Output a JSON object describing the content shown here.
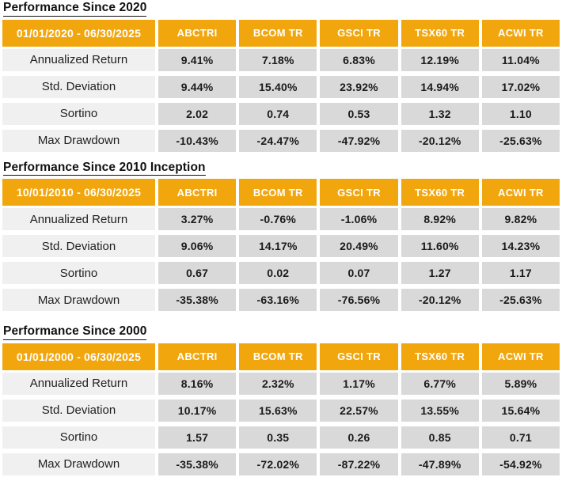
{
  "colors": {
    "header_bg": "#F2A60D",
    "header_text": "#FFFFFF",
    "label_cell_bg": "#F0F0F0",
    "value_cell_bg": "#D9D9D9",
    "text": "#1C1C1C",
    "page_bg": "#FFFFFF"
  },
  "columns": [
    "ABCTRI",
    "BCOM TR",
    "GSCI TR",
    "TSX60 TR",
    "ACWI TR"
  ],
  "tables": [
    {
      "title": "Performance Since 2020",
      "date_range": "01/01/2020 - 06/30/2025",
      "rows": [
        {
          "label": "Annualized Return",
          "values": [
            "9.41%",
            "7.18%",
            "6.83%",
            "12.19%",
            "11.04%"
          ]
        },
        {
          "label": "Std. Deviation",
          "values": [
            "9.44%",
            "15.40%",
            "23.92%",
            "14.94%",
            "17.02%"
          ]
        },
        {
          "label": "Sortino",
          "values": [
            "2.02",
            "0.74",
            "0.53",
            "1.32",
            "1.10"
          ]
        },
        {
          "label": "Max Drawdown",
          "values": [
            "-10.43%",
            "-24.47%",
            "-47.92%",
            "-20.12%",
            "-25.63%"
          ]
        }
      ]
    },
    {
      "title": "Performance Since 2010 Inception",
      "date_range": "10/01/2010 - 06/30/2025",
      "rows": [
        {
          "label": "Annualized Return",
          "values": [
            "3.27%",
            "-0.76%",
            "-1.06%",
            "8.92%",
            "9.82%"
          ]
        },
        {
          "label": "Std. Deviation",
          "values": [
            "9.06%",
            "14.17%",
            "20.49%",
            "11.60%",
            "14.23%"
          ]
        },
        {
          "label": "Sortino",
          "values": [
            "0.67",
            "0.02",
            "0.07",
            "1.27",
            "1.17"
          ]
        },
        {
          "label": "Max Drawdown",
          "values": [
            "-35.38%",
            "-63.16%",
            "-76.56%",
            "-20.12%",
            "-25.63%"
          ]
        }
      ]
    },
    {
      "title": "Performance Since 2000",
      "date_range": "01/01/2000 - 06/30/2025",
      "rows": [
        {
          "label": "Annualized Return",
          "values": [
            "8.16%",
            "2.32%",
            "1.17%",
            "6.77%",
            "5.89%"
          ]
        },
        {
          "label": "Std. Deviation",
          "values": [
            "10.17%",
            "15.63%",
            "22.57%",
            "13.55%",
            "15.64%"
          ]
        },
        {
          "label": "Sortino",
          "values": [
            "1.57",
            "0.35",
            "0.26",
            "0.85",
            "0.71"
          ]
        },
        {
          "label": "Max Drawdown",
          "values": [
            "-35.38%",
            "-72.02%",
            "-87.22%",
            "-47.89%",
            "-54.92%"
          ]
        }
      ]
    }
  ],
  "chart_data": [
    {
      "type": "table",
      "title": "Performance Since 2020",
      "period": "01/01/2020 - 06/30/2025",
      "columns": [
        "ABCTRI",
        "BCOM TR",
        "GSCI TR",
        "TSX60 TR",
        "ACWI TR"
      ],
      "series": [
        {
          "name": "Annualized Return",
          "values": [
            9.41,
            7.18,
            6.83,
            12.19,
            11.04
          ]
        },
        {
          "name": "Std. Deviation",
          "values": [
            9.44,
            15.4,
            23.92,
            14.94,
            17.02
          ]
        },
        {
          "name": "Sortino",
          "values": [
            2.02,
            0.74,
            0.53,
            1.32,
            1.1
          ]
        },
        {
          "name": "Max Drawdown",
          "values": [
            -10.43,
            -24.47,
            -47.92,
            -20.12,
            -25.63
          ]
        }
      ]
    },
    {
      "type": "table",
      "title": "Performance Since 2010 Inception",
      "period": "10/01/2010 - 06/30/2025",
      "columns": [
        "ABCTRI",
        "BCOM TR",
        "GSCI TR",
        "TSX60 TR",
        "ACWI TR"
      ],
      "series": [
        {
          "name": "Annualized Return",
          "values": [
            3.27,
            -0.76,
            -1.06,
            8.92,
            9.82
          ]
        },
        {
          "name": "Std. Deviation",
          "values": [
            9.06,
            14.17,
            20.49,
            11.6,
            14.23
          ]
        },
        {
          "name": "Sortino",
          "values": [
            0.67,
            0.02,
            0.07,
            1.27,
            1.17
          ]
        },
        {
          "name": "Max Drawdown",
          "values": [
            -35.38,
            -63.16,
            -76.56,
            -20.12,
            -25.63
          ]
        }
      ]
    },
    {
      "type": "table",
      "title": "Performance Since 2000",
      "period": "01/01/2000 - 06/30/2025",
      "columns": [
        "ABCTRI",
        "BCOM TR",
        "GSCI TR",
        "TSX60 TR",
        "ACWI TR"
      ],
      "series": [
        {
          "name": "Annualized Return",
          "values": [
            8.16,
            2.32,
            1.17,
            6.77,
            5.89
          ]
        },
        {
          "name": "Std. Deviation",
          "values": [
            10.17,
            15.63,
            22.57,
            13.55,
            15.64
          ]
        },
        {
          "name": "Sortino",
          "values": [
            1.57,
            0.35,
            0.26,
            0.85,
            0.71
          ]
        },
        {
          "name": "Max Drawdown",
          "values": [
            -35.38,
            -72.02,
            -87.22,
            -47.89,
            -54.92
          ]
        }
      ]
    }
  ]
}
